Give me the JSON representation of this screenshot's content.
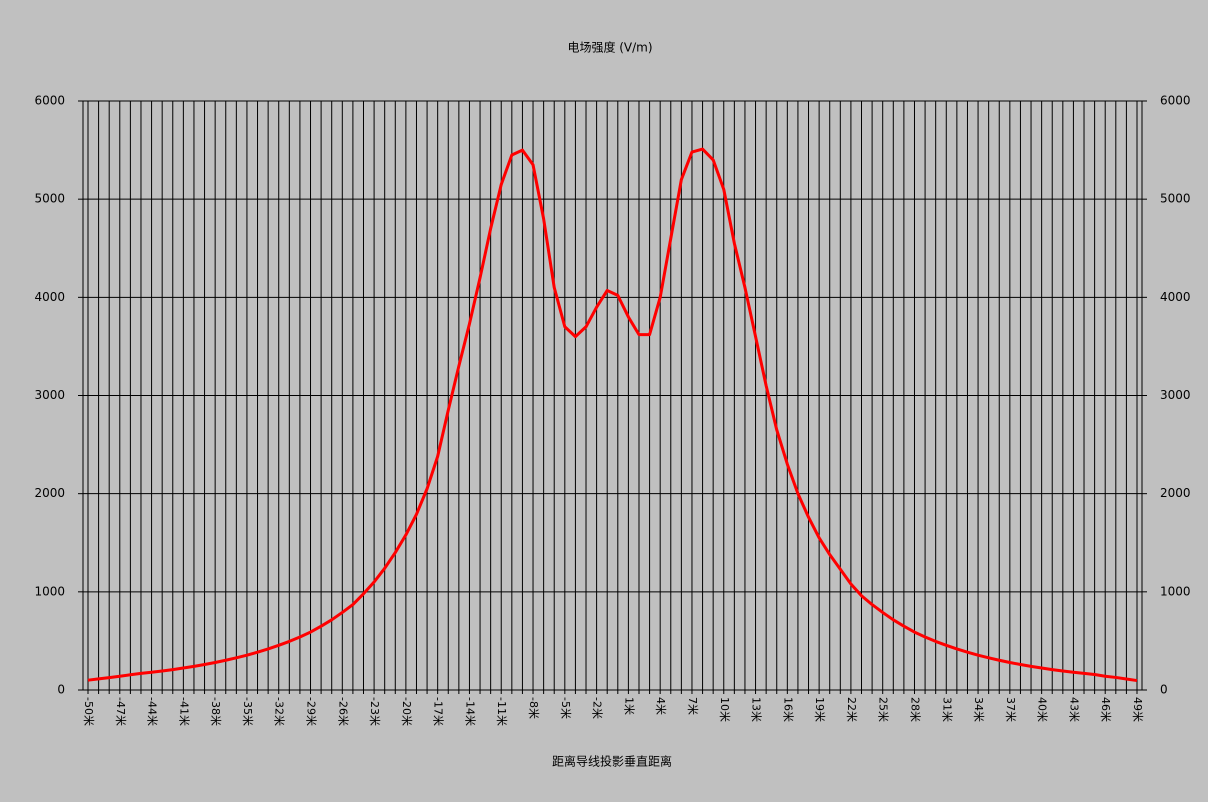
{
  "chart_data": {
    "type": "line",
    "title": "电场强度  (V/m)",
    "x_label": "距离导线投影垂直距离",
    "categories": [
      "-50米",
      null,
      null,
      "-47米",
      null,
      null,
      "-44米",
      null,
      null,
      "-41米",
      null,
      null,
      "-38米",
      null,
      null,
      "-35米",
      null,
      null,
      "-32米",
      null,
      null,
      "-29米",
      null,
      null,
      "-26米",
      null,
      null,
      "-23米",
      null,
      null,
      "-20米",
      null,
      null,
      "-17米",
      null,
      null,
      "-14米",
      null,
      null,
      "-11米",
      null,
      null,
      "-8米",
      null,
      null,
      "-5米",
      null,
      null,
      "-2米",
      null,
      null,
      "1米",
      null,
      null,
      "4米",
      null,
      null,
      "7米",
      null,
      null,
      "10米",
      null,
      null,
      "13米",
      null,
      null,
      "16米",
      null,
      null,
      "19米",
      null,
      null,
      "22米",
      null,
      null,
      "25米",
      null,
      null,
      "28米",
      null,
      null,
      "31米",
      null,
      null,
      "34米",
      null,
      null,
      "37米",
      null,
      null,
      "40米",
      null,
      null,
      "43米",
      null,
      null,
      "46米",
      null,
      null,
      "49米"
    ],
    "series": [
      {
        "name": "电场强度",
        "color": "#ff0000",
        "values": [
          100,
          113,
          126,
          140,
          155,
          169,
          181,
          194,
          208,
          224,
          241,
          260,
          280,
          303,
          328,
          355,
          385,
          418,
          455,
          495,
          540,
          590,
          650,
          715,
          790,
          870,
          980,
          1100,
          1240,
          1400,
          1580,
          1790,
          2050,
          2380,
          2850,
          3300,
          3730,
          4200,
          4700,
          5150,
          5450,
          5500,
          5350,
          4800,
          4100,
          3700,
          3600,
          3700,
          3900,
          4070,
          4020,
          3800,
          3620,
          3620,
          4000,
          4600,
          5200,
          5480,
          5510,
          5400,
          5100,
          4550,
          4100,
          3600,
          3100,
          2650,
          2300,
          2000,
          1760,
          1550,
          1380,
          1230,
          1080,
          960,
          870,
          790,
          715,
          650,
          590,
          540,
          495,
          455,
          418,
          385,
          355,
          328,
          303,
          280,
          260,
          241,
          224,
          208,
          194,
          181,
          169,
          158,
          140,
          128,
          112,
          96
        ]
      }
    ],
    "ylim": [
      0,
      6000
    ],
    "yticks": [
      0,
      1000,
      2000,
      3000,
      4000,
      5000,
      6000
    ],
    "y2lim": [
      0,
      6000
    ],
    "y2ticks": [
      0,
      1000,
      2000,
      3000,
      4000,
      5000,
      6000
    ],
    "grid": true
  }
}
